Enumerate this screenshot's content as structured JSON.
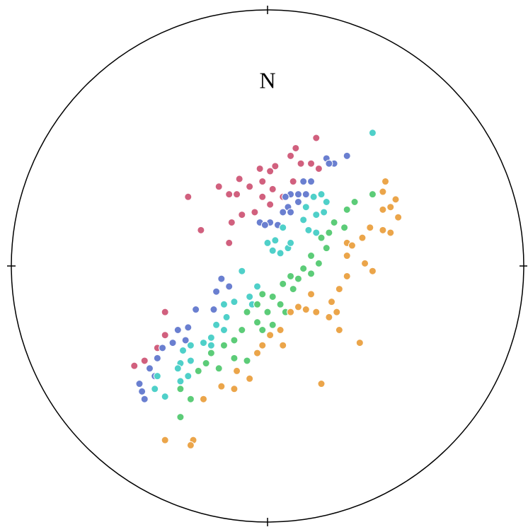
{
  "chart_data": {
    "type": "scatter",
    "title": "N",
    "xlim": [
      -1,
      1
    ],
    "ylim": [
      -1,
      1
    ],
    "series": [
      {
        "color": "#d1607e",
        "x": [
          0.19,
          0.11,
          0.09,
          0.03,
          0.01,
          -0.03,
          -0.11,
          -0.07,
          -0.02,
          0.02,
          -0.15,
          -0.12,
          -0.31,
          -0.02,
          0.01,
          -0.19,
          -0.05,
          -0.1,
          -0.14,
          -0.26,
          -0.15,
          0.13,
          0.17,
          0.2,
          -0.4,
          -0.4,
          -0.43,
          -0.48,
          -0.52,
          0.1,
          0.06
        ],
        "y": [
          0.5,
          0.46,
          0.43,
          0.39,
          0.37,
          0.38,
          0.34,
          0.31,
          0.33,
          0.3,
          0.28,
          0.28,
          0.27,
          0.27,
          0.24,
          0.31,
          0.21,
          0.2,
          0.17,
          0.14,
          0.09,
          0.4,
          0.4,
          0.38,
          -0.18,
          -0.27,
          -0.32,
          -0.37,
          -0.39,
          0.33,
          0.27
        ]
      },
      {
        "color": "#6a7fd0",
        "x": [
          0.31,
          0.26,
          0.23,
          0.24,
          0.17,
          0.14,
          0.09,
          0.12,
          0.07,
          0.15,
          0.08,
          0.12,
          0.06,
          0.09,
          0.01,
          -0.03,
          -0.01,
          0.04,
          -0.18,
          -0.15,
          -0.2,
          -0.28,
          -0.21,
          -0.31,
          -0.35,
          -0.32,
          -0.37,
          -0.41,
          -0.43,
          -0.46,
          -0.44,
          -0.5,
          -0.49,
          -0.48
        ],
        "y": [
          0.43,
          0.4,
          0.42,
          0.4,
          0.33,
          0.33,
          0.28,
          0.28,
          0.27,
          0.28,
          0.23,
          0.25,
          0.21,
          0.21,
          0.17,
          0.17,
          0.16,
          0.16,
          -0.05,
          -0.08,
          -0.1,
          -0.17,
          -0.17,
          -0.24,
          -0.25,
          -0.29,
          -0.3,
          -0.32,
          -0.36,
          -0.4,
          -0.43,
          -0.46,
          -0.49,
          -0.52
        ]
      },
      {
        "color": "#4fd0c9",
        "x": [
          0.41,
          0.18,
          0.21,
          0.23,
          0.15,
          0.19,
          0.22,
          0.14,
          0.06,
          0.03,
          0.0,
          0.02,
          0.08,
          0.05,
          0.09,
          0.16,
          0.19,
          -0.1,
          -0.04,
          -0.07,
          -0.06,
          -0.13,
          -0.17,
          -0.16,
          -0.2,
          -0.17,
          -0.22,
          -0.25,
          -0.3,
          -0.33,
          -0.3,
          -0.34,
          -0.35,
          -0.31,
          -0.34,
          -0.43,
          -0.44,
          -0.4,
          -0.22
        ],
        "y": [
          0.52,
          0.27,
          0.28,
          0.25,
          0.23,
          0.2,
          0.21,
          0.18,
          0.15,
          0.1,
          0.09,
          0.06,
          0.07,
          0.05,
          0.09,
          0.14,
          0.13,
          -0.02,
          -0.08,
          -0.12,
          -0.15,
          -0.14,
          -0.15,
          -0.2,
          -0.23,
          -0.25,
          -0.28,
          -0.3,
          -0.31,
          -0.33,
          -0.37,
          -0.38,
          -0.4,
          -0.43,
          -0.45,
          -0.43,
          -0.48,
          -0.51,
          -0.31
        ]
      },
      {
        "color": "#5ccc78",
        "x": [
          0.41,
          0.34,
          0.31,
          0.26,
          0.24,
          0.21,
          0.3,
          0.23,
          0.17,
          0.2,
          0.14,
          0.09,
          0.06,
          0.1,
          0.02,
          -0.02,
          -0.04,
          0.0,
          -0.08,
          -0.04,
          0.02,
          -0.1,
          -0.13,
          -0.17,
          -0.22,
          -0.24,
          -0.19,
          -0.27,
          -0.13,
          -0.08,
          -0.34,
          -0.3,
          -0.34,
          0.07,
          0.17,
          0.12,
          0.05,
          -0.02
        ],
        "y": [
          0.28,
          0.25,
          0.22,
          0.17,
          0.13,
          0.11,
          0.15,
          0.07,
          0.04,
          0.01,
          -0.01,
          -0.04,
          -0.07,
          -0.09,
          -0.12,
          -0.11,
          -0.15,
          -0.18,
          -0.18,
          -0.22,
          -0.23,
          -0.25,
          -0.29,
          -0.31,
          -0.34,
          -0.38,
          -0.4,
          -0.41,
          -0.36,
          -0.37,
          -0.48,
          -0.52,
          -0.59,
          -0.18,
          -0.03,
          -0.05,
          -0.15,
          -0.25
        ]
      },
      {
        "color": "#eba54a",
        "x": [
          0.46,
          0.45,
          0.5,
          0.48,
          0.45,
          0.51,
          0.4,
          0.45,
          0.48,
          0.31,
          0.33,
          0.37,
          0.31,
          0.38,
          0.41,
          0.31,
          0.28,
          0.25,
          0.17,
          0.15,
          0.19,
          0.24,
          0.27,
          0.28,
          0.36,
          0.12,
          0.09,
          0.05,
          0.06,
          0.01,
          -0.02,
          -0.04,
          -0.12,
          -0.07,
          -0.18,
          -0.13,
          -0.25,
          0.21,
          -0.4,
          -0.29,
          -0.3
        ],
        "y": [
          0.33,
          0.29,
          0.26,
          0.23,
          0.22,
          0.19,
          0.15,
          0.14,
          0.13,
          0.09,
          0.08,
          0.11,
          0.04,
          0.01,
          -0.02,
          -0.04,
          -0.09,
          -0.14,
          -0.11,
          -0.17,
          -0.18,
          -0.2,
          -0.18,
          -0.25,
          -0.3,
          -0.16,
          -0.18,
          -0.25,
          -0.31,
          -0.27,
          -0.31,
          -0.34,
          -0.41,
          -0.44,
          -0.47,
          -0.48,
          -0.52,
          -0.46,
          -0.68,
          -0.68,
          -0.7
        ]
      }
    ]
  }
}
